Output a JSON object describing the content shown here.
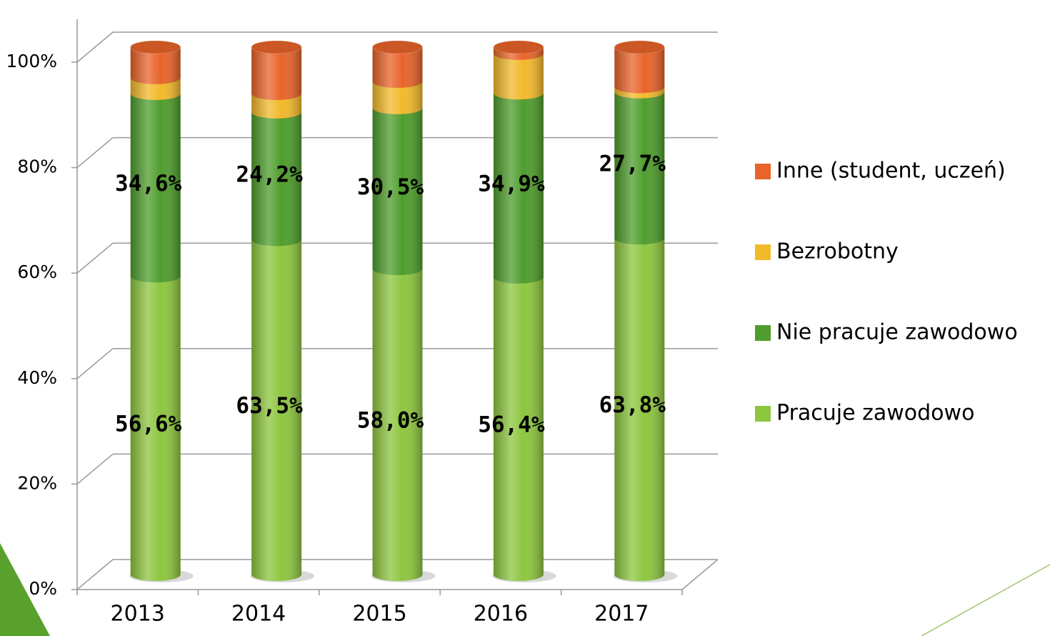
{
  "chart_data": {
    "type": "bar3d_stacked",
    "categories": [
      "2013",
      "2014",
      "2015",
      "2016",
      "2017"
    ],
    "series": [
      {
        "name": "Pracuje zawodowo",
        "color": "#8dc63f",
        "values": [
          56.6,
          63.5,
          58.0,
          56.4,
          63.8
        ],
        "value_labels": [
          "56,6%",
          "63,5%",
          "58,0%",
          "56,4%",
          "63,8%"
        ]
      },
      {
        "name": "Nie pracuje zawodowo",
        "color": "#4f9d2d",
        "values": [
          34.6,
          24.2,
          30.5,
          34.9,
          27.7
        ],
        "value_labels": [
          "34,6%",
          "24,2%",
          "30,5%",
          "34,9%",
          "27,7%"
        ]
      },
      {
        "name": "Bezrobotny",
        "color": "#f2b92b",
        "values": [
          3.0,
          3.5,
          5.0,
          7.5,
          1.0
        ]
      },
      {
        "name": "Inne (student, uczeń)",
        "color": "#e8642a",
        "values": [
          5.8,
          8.8,
          6.5,
          1.2,
          7.5
        ]
      }
    ],
    "ylim": [
      0,
      100
    ],
    "yticks": [
      {
        "value": 0,
        "label": "0%"
      },
      {
        "value": 20,
        "label": "20%"
      },
      {
        "value": 40,
        "label": "40%"
      },
      {
        "value": 60,
        "label": "60%"
      },
      {
        "value": 80,
        "label": "80%"
      },
      {
        "value": 100,
        "label": "100%"
      }
    ],
    "grid": true,
    "legend": "right"
  }
}
